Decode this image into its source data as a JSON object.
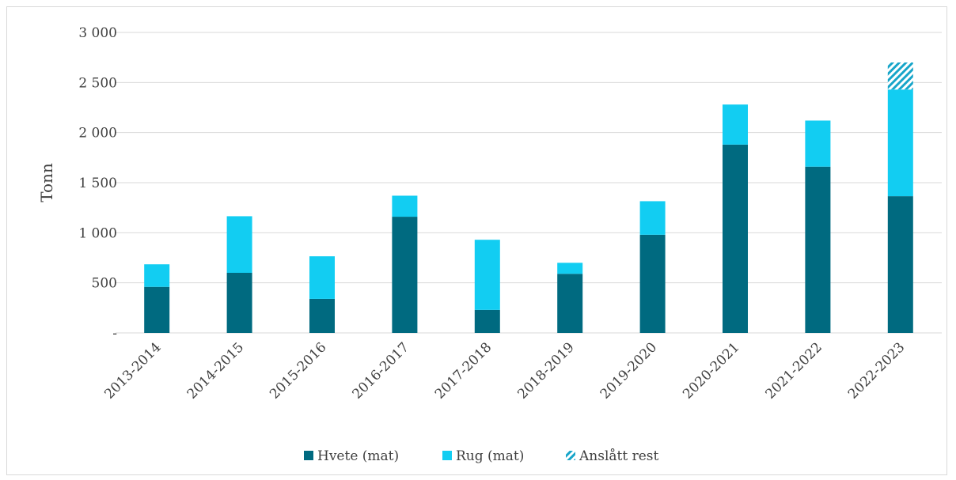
{
  "chart_data": {
    "type": "bar",
    "stacked": true,
    "categories": [
      "2013-2014",
      "2014-2015",
      "2015-2016",
      "2016-2017",
      "2017-2018",
      "2018-2019",
      "2019-2020",
      "2020-2021",
      "2021-2022",
      "2022-2023"
    ],
    "series": [
      {
        "name": "Hvete (mat)",
        "color": "#006a80",
        "pattern": "solid",
        "values": [
          460,
          600,
          340,
          1160,
          230,
          590,
          980,
          1880,
          1660,
          1365
        ]
      },
      {
        "name": "Rug (mat)",
        "color": "#12cdf2",
        "pattern": "solid",
        "values": [
          225,
          565,
          425,
          210,
          700,
          110,
          335,
          400,
          460,
          1065
        ]
      },
      {
        "name": "Anslått rest",
        "color": "#17a5c9",
        "pattern": "hatched",
        "values": [
          0,
          0,
          0,
          0,
          0,
          0,
          0,
          0,
          0,
          270
        ]
      }
    ],
    "ylabel": "Tonn",
    "ylim": [
      0,
      3000
    ],
    "yticks": [
      0,
      500,
      1000,
      1500,
      2000,
      2500,
      3000
    ],
    "ytick_labels": [
      "-",
      "500",
      "1 000",
      "1 500",
      "2 000",
      "2 500",
      "3 000"
    ],
    "grid": true,
    "legend_position": "bottom"
  }
}
